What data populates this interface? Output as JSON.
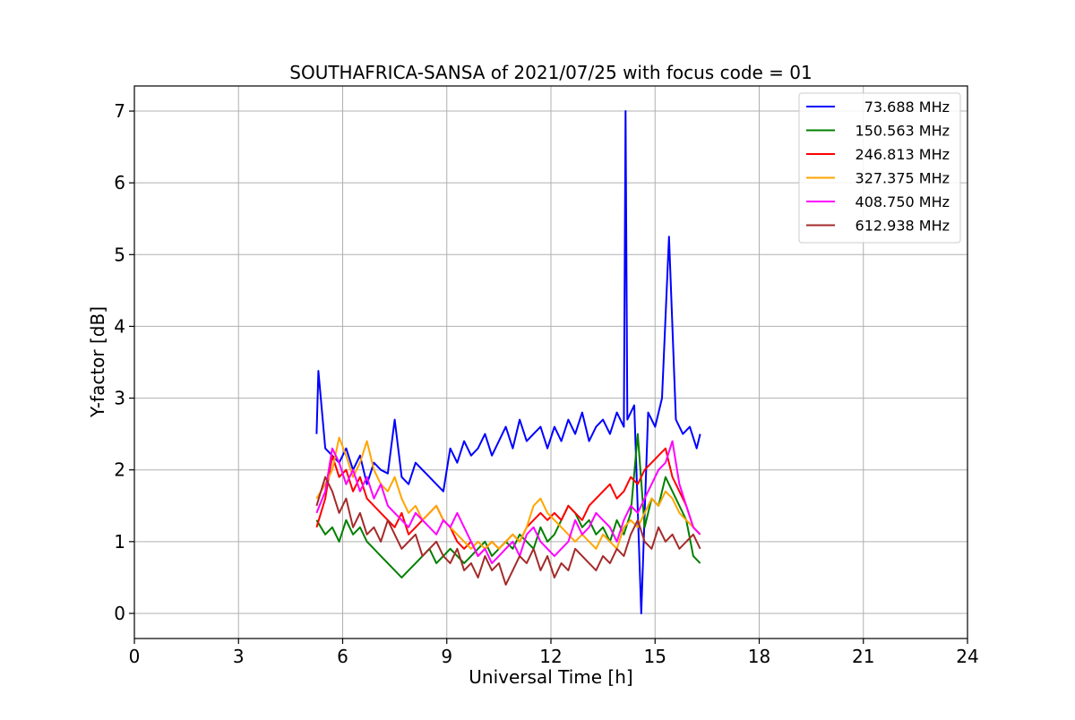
{
  "chart_data": {
    "type": "line",
    "title": "SOUTHAFRICA-SANSA of 2021/07/25 with focus code = 01",
    "xlabel": "Universal Time [h]",
    "ylabel": "Y-factor [dB]",
    "xlim": [
      0,
      24
    ],
    "ylim": [
      -0.35,
      7.35
    ],
    "xticks": [
      0,
      3,
      6,
      9,
      12,
      15,
      18,
      21,
      24
    ],
    "yticks": [
      0,
      1,
      2,
      3,
      4,
      5,
      6,
      7
    ],
    "grid": true,
    "legend_position": "top-right",
    "series": [
      {
        "name": "73.688 MHz",
        "color": "#0000ff",
        "x": [
          5.25,
          5.3,
          5.5,
          5.7,
          5.9,
          6.1,
          6.3,
          6.5,
          6.7,
          6.9,
          7.1,
          7.3,
          7.5,
          7.7,
          7.9,
          8.1,
          8.3,
          8.5,
          8.7,
          8.9,
          9.1,
          9.3,
          9.5,
          9.7,
          9.9,
          10.1,
          10.3,
          10.5,
          10.7,
          10.9,
          11.1,
          11.3,
          11.5,
          11.7,
          11.9,
          12.1,
          12.3,
          12.5,
          12.7,
          12.9,
          13.1,
          13.3,
          13.5,
          13.7,
          13.9,
          14.1,
          14.15,
          14.2,
          14.4,
          14.6,
          14.8,
          15.0,
          15.2,
          15.4,
          15.6,
          15.8,
          16.0,
          16.2,
          16.3
        ],
        "y": [
          2.5,
          3.38,
          2.3,
          2.2,
          2.1,
          2.3,
          2.0,
          2.2,
          1.8,
          2.1,
          2.0,
          1.95,
          2.7,
          1.9,
          1.8,
          2.1,
          2.0,
          1.9,
          1.8,
          1.7,
          2.3,
          2.1,
          2.4,
          2.2,
          2.3,
          2.5,
          2.2,
          2.4,
          2.6,
          2.3,
          2.7,
          2.4,
          2.5,
          2.6,
          2.3,
          2.6,
          2.4,
          2.7,
          2.5,
          2.8,
          2.4,
          2.6,
          2.7,
          2.5,
          2.8,
          2.6,
          7.0,
          2.7,
          2.9,
          0.0,
          2.8,
          2.6,
          3.0,
          5.25,
          2.7,
          2.5,
          2.6,
          2.3,
          2.5
        ]
      },
      {
        "name": "150.563 MHz",
        "color": "#008000",
        "x": [
          5.25,
          5.5,
          5.7,
          5.9,
          6.1,
          6.3,
          6.5,
          6.7,
          6.9,
          7.1,
          7.3,
          7.5,
          7.7,
          7.9,
          8.1,
          8.3,
          8.5,
          8.7,
          8.9,
          9.1,
          9.3,
          9.5,
          9.7,
          9.9,
          10.1,
          10.3,
          10.5,
          10.7,
          10.9,
          11.1,
          11.3,
          11.5,
          11.7,
          11.9,
          12.1,
          12.3,
          12.5,
          12.7,
          12.9,
          13.1,
          13.3,
          13.5,
          13.7,
          13.9,
          14.1,
          14.3,
          14.5,
          14.7,
          14.9,
          15.1,
          15.3,
          15.5,
          15.7,
          15.9,
          16.1,
          16.3
        ],
        "y": [
          1.3,
          1.1,
          1.2,
          1.0,
          1.3,
          1.1,
          1.2,
          1.0,
          0.9,
          0.8,
          0.7,
          0.6,
          0.5,
          0.6,
          0.7,
          0.8,
          0.9,
          0.7,
          0.8,
          0.9,
          0.8,
          0.7,
          0.8,
          0.9,
          1.0,
          0.8,
          0.9,
          1.0,
          0.9,
          1.1,
          1.0,
          0.9,
          1.2,
          1.0,
          1.1,
          1.3,
          1.5,
          1.4,
          1.2,
          1.3,
          1.1,
          1.2,
          1.0,
          1.3,
          1.1,
          1.4,
          2.5,
          1.2,
          1.6,
          1.5,
          1.9,
          1.7,
          1.5,
          1.3,
          0.8,
          0.7
        ]
      },
      {
        "name": "246.813 MHz",
        "color": "#ff0000",
        "x": [
          5.25,
          5.5,
          5.7,
          5.9,
          6.1,
          6.3,
          6.5,
          6.7,
          6.9,
          7.1,
          7.3,
          7.5,
          7.7,
          7.9,
          8.1,
          8.3,
          8.5,
          8.7,
          8.9,
          9.1,
          9.3,
          9.5,
          9.7,
          9.9,
          10.1,
          10.3,
          10.5,
          10.7,
          10.9,
          11.1,
          11.3,
          11.5,
          11.7,
          11.9,
          12.1,
          12.3,
          12.5,
          12.7,
          12.9,
          13.1,
          13.3,
          13.5,
          13.7,
          13.9,
          14.1,
          14.3,
          14.5,
          14.7,
          14.9,
          15.1,
          15.3,
          15.5,
          15.7,
          15.9,
          16.1,
          16.3
        ],
        "y": [
          1.2,
          1.6,
          2.2,
          1.9,
          2.0,
          1.7,
          1.9,
          1.6,
          1.5,
          1.4,
          1.3,
          1.2,
          1.4,
          1.1,
          1.2,
          1.3,
          1.4,
          1.5,
          1.3,
          1.2,
          1.0,
          0.9,
          1.0,
          0.8,
          0.9,
          1.0,
          0.9,
          1.0,
          1.1,
          1.0,
          1.2,
          1.3,
          1.4,
          1.3,
          1.4,
          1.3,
          1.5,
          1.4,
          1.3,
          1.5,
          1.6,
          1.7,
          1.8,
          1.6,
          1.7,
          1.9,
          1.8,
          2.0,
          2.1,
          2.2,
          2.3,
          1.9,
          1.7,
          1.5,
          1.2,
          1.1
        ]
      },
      {
        "name": "327.375 MHz",
        "color": "#ffa500",
        "x": [
          5.25,
          5.5,
          5.7,
          5.9,
          6.1,
          6.3,
          6.5,
          6.7,
          6.9,
          7.1,
          7.3,
          7.5,
          7.7,
          7.9,
          8.1,
          8.3,
          8.5,
          8.7,
          8.9,
          9.1,
          9.3,
          9.5,
          9.7,
          9.9,
          10.1,
          10.3,
          10.5,
          10.7,
          10.9,
          11.1,
          11.3,
          11.5,
          11.7,
          11.9,
          12.1,
          12.3,
          12.5,
          12.7,
          12.9,
          13.1,
          13.3,
          13.5,
          13.7,
          13.9,
          14.1,
          14.3,
          14.5,
          14.7,
          14.9,
          15.1,
          15.3,
          15.5,
          15.7,
          15.9,
          16.1,
          16.3
        ],
        "y": [
          1.6,
          1.8,
          2.0,
          2.45,
          2.2,
          1.9,
          2.1,
          2.4,
          2.0,
          1.8,
          1.7,
          1.9,
          1.6,
          1.4,
          1.5,
          1.3,
          1.4,
          1.5,
          1.3,
          1.2,
          1.1,
          1.0,
          0.9,
          1.0,
          0.9,
          1.0,
          0.9,
          1.0,
          1.1,
          1.0,
          1.2,
          1.5,
          1.6,
          1.4,
          1.3,
          1.2,
          1.1,
          1.0,
          1.1,
          1.0,
          0.9,
          1.1,
          1.0,
          0.9,
          1.2,
          1.3,
          1.2,
          1.4,
          1.6,
          1.5,
          1.7,
          1.6,
          1.4,
          1.3,
          1.2,
          1.1
        ]
      },
      {
        "name": "408.750 MHz",
        "color": "#ff00ff",
        "x": [
          5.25,
          5.5,
          5.7,
          5.9,
          6.1,
          6.3,
          6.5,
          6.7,
          6.9,
          7.1,
          7.3,
          7.5,
          7.7,
          7.9,
          8.1,
          8.3,
          8.5,
          8.7,
          8.9,
          9.1,
          9.3,
          9.5,
          9.7,
          9.9,
          10.1,
          10.3,
          10.5,
          10.7,
          10.9,
          11.1,
          11.3,
          11.5,
          11.7,
          11.9,
          12.1,
          12.3,
          12.5,
          12.7,
          12.9,
          13.1,
          13.3,
          13.5,
          13.7,
          13.9,
          14.1,
          14.3,
          14.5,
          14.7,
          14.9,
          15.1,
          15.3,
          15.5,
          15.7,
          15.9,
          16.1,
          16.3
        ],
        "y": [
          1.4,
          1.7,
          2.3,
          2.1,
          1.8,
          2.0,
          1.7,
          1.9,
          1.6,
          1.8,
          1.5,
          1.4,
          1.3,
          1.2,
          1.4,
          1.3,
          1.2,
          1.1,
          1.3,
          1.2,
          1.4,
          1.2,
          1.0,
          0.8,
          0.9,
          0.7,
          0.8,
          0.9,
          1.0,
          0.8,
          1.1,
          1.2,
          1.0,
          0.9,
          0.8,
          0.9,
          1.0,
          1.3,
          1.1,
          1.2,
          1.4,
          1.3,
          1.2,
          1.0,
          1.3,
          1.5,
          1.4,
          1.6,
          1.8,
          2.0,
          2.1,
          2.4,
          1.8,
          1.5,
          1.2,
          1.1
        ]
      },
      {
        "name": "612.938 MHz",
        "color": "#a52a2a",
        "x": [
          5.25,
          5.5,
          5.7,
          5.9,
          6.1,
          6.3,
          6.5,
          6.7,
          6.9,
          7.1,
          7.3,
          7.5,
          7.7,
          7.9,
          8.1,
          8.3,
          8.5,
          8.7,
          8.9,
          9.1,
          9.3,
          9.5,
          9.7,
          9.9,
          10.1,
          10.3,
          10.5,
          10.7,
          10.9,
          11.1,
          11.3,
          11.5,
          11.7,
          11.9,
          12.1,
          12.3,
          12.5,
          12.7,
          12.9,
          13.1,
          13.3,
          13.5,
          13.7,
          13.9,
          14.1,
          14.3,
          14.5,
          14.7,
          14.9,
          15.1,
          15.3,
          15.5,
          15.7,
          15.9,
          16.1,
          16.3
        ],
        "y": [
          1.5,
          1.9,
          1.7,
          1.4,
          1.6,
          1.2,
          1.4,
          1.1,
          1.2,
          1.0,
          1.3,
          1.1,
          0.9,
          1.0,
          1.1,
          0.8,
          0.9,
          1.0,
          0.8,
          0.7,
          0.9,
          0.6,
          0.7,
          0.5,
          0.8,
          0.6,
          0.7,
          0.4,
          0.6,
          0.8,
          0.7,
          0.9,
          0.6,
          0.8,
          0.5,
          0.7,
          0.6,
          0.9,
          0.8,
          0.7,
          0.6,
          0.8,
          0.7,
          0.9,
          0.8,
          1.1,
          1.3,
          1.0,
          0.9,
          1.2,
          1.0,
          1.1,
          0.9,
          1.0,
          1.1,
          0.9
        ]
      }
    ]
  }
}
